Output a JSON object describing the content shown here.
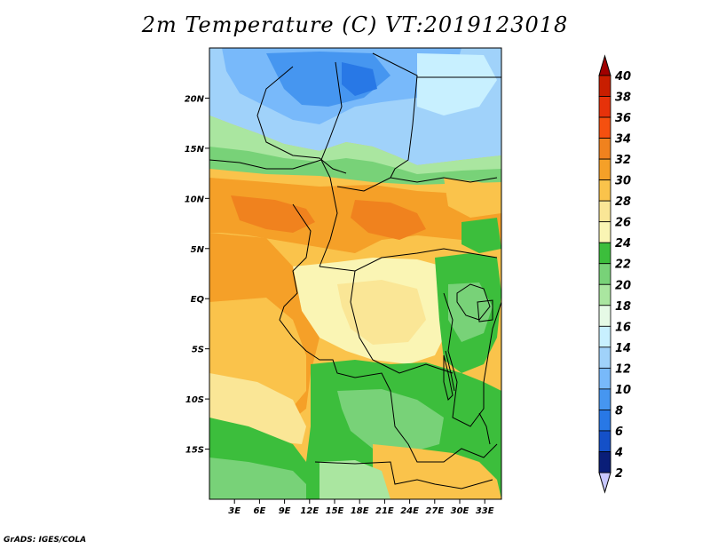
{
  "title": "2m Temperature (C) VT:2019123018",
  "credit": "GrADS: IGES/COLA",
  "map": {
    "lon_range": [
      0,
      35
    ],
    "lat_range": [
      -20,
      25
    ],
    "x_ticks": [
      "3E",
      "6E",
      "9E",
      "12E",
      "15E",
      "18E",
      "21E",
      "24E",
      "27E",
      "30E",
      "33E"
    ],
    "x_tick_values": [
      3,
      6,
      9,
      12,
      15,
      18,
      21,
      24,
      27,
      30,
      33
    ],
    "y_ticks": [
      "20N",
      "15N",
      "10N",
      "5N",
      "EQ",
      "5S",
      "10S",
      "15S"
    ],
    "y_tick_values": [
      20,
      15,
      10,
      5,
      0,
      -5,
      -10,
      -15
    ]
  },
  "colorbar": {
    "labels": [
      "40",
      "38",
      "36",
      "34",
      "32",
      "30",
      "28",
      "26",
      "24",
      "22",
      "20",
      "18",
      "16",
      "14",
      "12",
      "10",
      "8",
      "6",
      "4",
      "2"
    ],
    "colors": [
      "#a00000",
      "#c81e00",
      "#e6320a",
      "#f5500f",
      "#f0821e",
      "#f5a028",
      "#fac34b",
      "#fae696",
      "#faf5b4",
      "#3cbe3c",
      "#78d278",
      "#aae6a0",
      "#e6fae6",
      "#c8f0ff",
      "#a0d2fa",
      "#78b9fa",
      "#4696f0",
      "#2878e6",
      "#1450c8",
      "#0a1e78",
      "#c8c8ff"
    ]
  }
}
